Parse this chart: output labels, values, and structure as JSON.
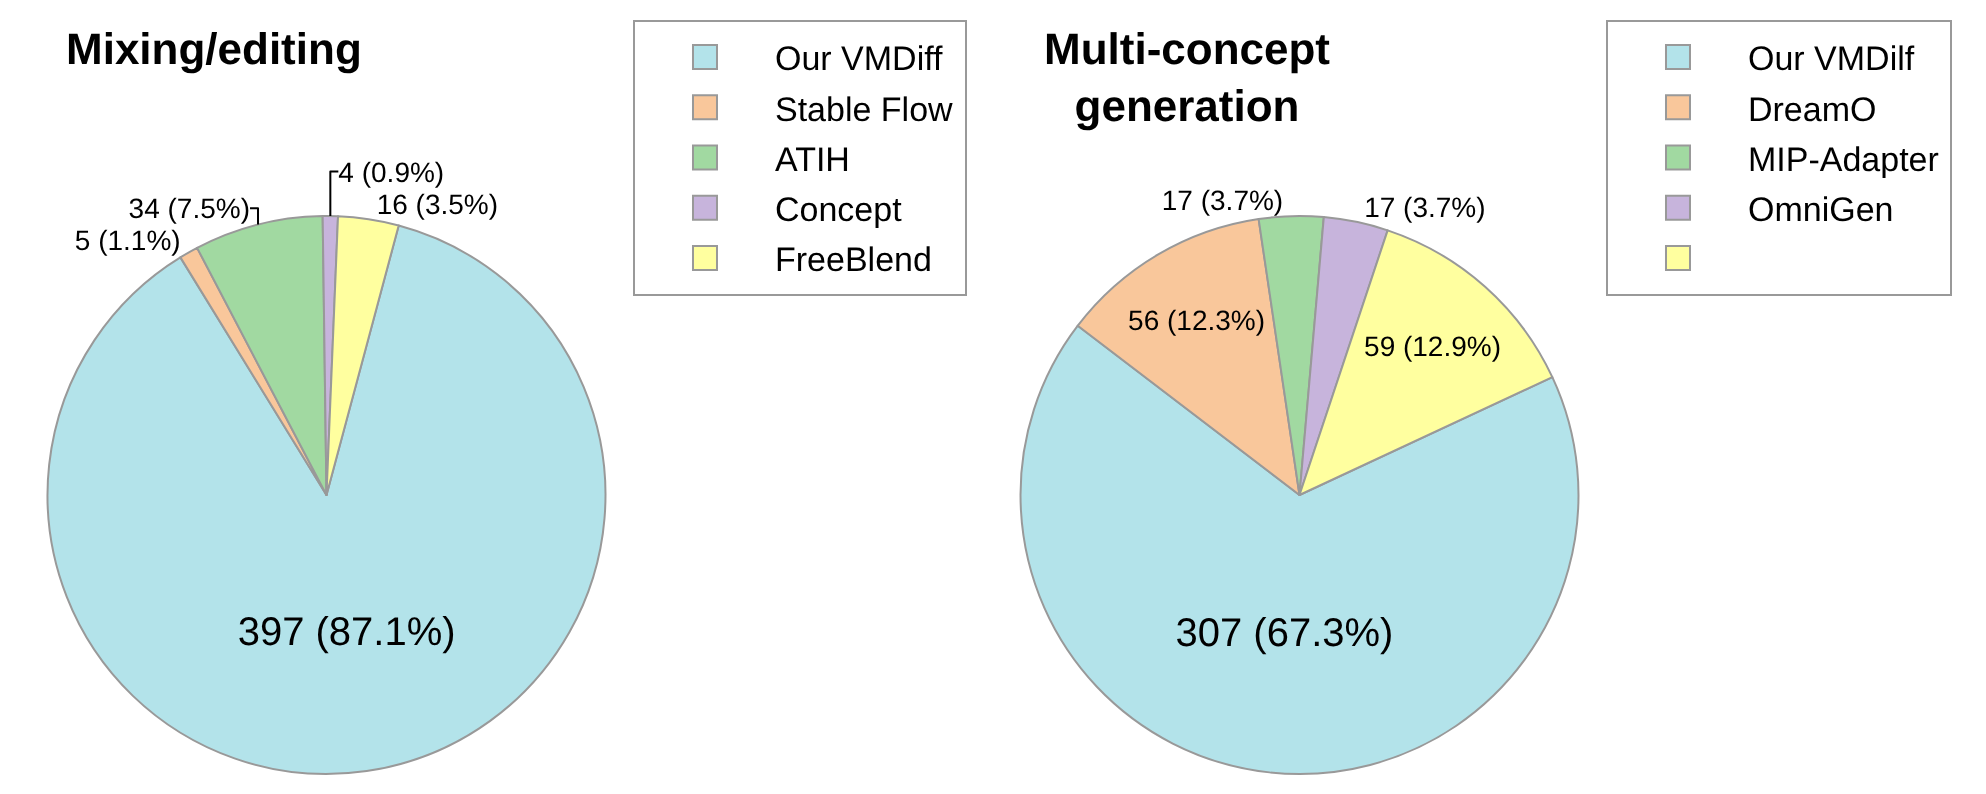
{
  "chart_data": [
    {
      "type": "pie",
      "title": "Mixing/editing",
      "categories": [
        "Our VMDiff",
        "Stable Flow",
        "ATIH",
        "Concept",
        "FreeBlend"
      ],
      "values": [
        397,
        5,
        34,
        4,
        16
      ],
      "colors": [
        "#b3e3ea",
        "#f9c79b",
        "#a1d9a1",
        "#c7b4dc",
        "#ffff9f"
      ],
      "value_labels": [
        "397 (87.1%)",
        "5 (1.1%)",
        "34 (7.5%)",
        "4 (0.9%)",
        "16 (3.5%)"
      ],
      "legend": "top right"
    },
    {
      "type": "pie",
      "title": "Multi-concept\ngeneration",
      "categories": [
        "Our VMDilf",
        "DreamO",
        "MIP-Adapter",
        "OmniGen",
        null
      ],
      "values": [
        307,
        56,
        17,
        17,
        59
      ],
      "colors": [
        "#b3e3ea",
        "#f9c79b",
        "#a1d9a1",
        "#c7b4dc",
        "#ffff9f"
      ],
      "value_labels": [
        "307 (67.3%)",
        "56 (12.3%)",
        "17 (3.7%)",
        "17 (3.7%)",
        "59 (12.9%)"
      ],
      "legend": "top right"
    }
  ]
}
